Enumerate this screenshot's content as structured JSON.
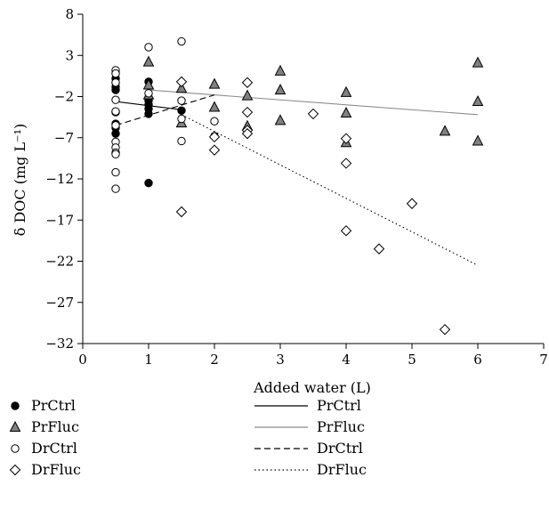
{
  "chart_data": {
    "type": "scatter",
    "xlabel": "Added water (L)",
    "ylabel": "δ DOC (mg L⁻¹)",
    "xlim": [
      0,
      7
    ],
    "ylim": [
      -32,
      8
    ],
    "xticks": [
      0,
      1,
      2,
      3,
      4,
      5,
      6,
      7
    ],
    "yticks": [
      8,
      3,
      -2,
      -7,
      -12,
      -17,
      -22,
      -27,
      -32
    ],
    "grid": false,
    "legend_position": "bottom",
    "series": [
      {
        "name": "PrCtrl",
        "marker": "filled-circle",
        "fill": "#000000",
        "points": [
          [
            0.5,
            0.2
          ],
          [
            0.5,
            -0.3
          ],
          [
            0.5,
            -0.8
          ],
          [
            0.5,
            -1.2
          ],
          [
            0.5,
            -3.9
          ],
          [
            0.5,
            -5.3
          ],
          [
            0.5,
            -5.8
          ],
          [
            0.5,
            -6.5
          ],
          [
            1.0,
            -0.2
          ],
          [
            1.0,
            -2.5
          ],
          [
            1.0,
            -3.0
          ],
          [
            1.0,
            -3.5
          ],
          [
            1.0,
            -4.1
          ],
          [
            1.0,
            -12.5
          ],
          [
            1.5,
            -3.7
          ]
        ]
      },
      {
        "name": "PrFluc",
        "marker": "filled-triangle",
        "fill": "#808080",
        "points": [
          [
            1.0,
            2.2
          ],
          [
            1.0,
            -0.6
          ],
          [
            1.0,
            -1.8
          ],
          [
            1.5,
            -1.0
          ],
          [
            1.5,
            -5.2
          ],
          [
            2.0,
            -0.5
          ],
          [
            2.0,
            -3.3
          ],
          [
            2.5,
            -1.9
          ],
          [
            2.5,
            -5.6
          ],
          [
            3.0,
            1.1
          ],
          [
            3.0,
            -1.2
          ],
          [
            3.0,
            -4.9
          ],
          [
            4.0,
            -1.5
          ],
          [
            4.0,
            -4.0
          ],
          [
            4.0,
            -7.6
          ],
          [
            5.5,
            -6.2
          ],
          [
            6.0,
            2.1
          ],
          [
            6.0,
            -2.6
          ],
          [
            6.0,
            -7.4
          ]
        ]
      },
      {
        "name": "DrCtrl",
        "marker": "open-circle",
        "fill": "#ffffff",
        "points": [
          [
            0.5,
            1.2
          ],
          [
            0.5,
            0.8
          ],
          [
            0.5,
            -0.3
          ],
          [
            0.5,
            -2.4
          ],
          [
            0.5,
            -3.8
          ],
          [
            0.5,
            -5.5
          ],
          [
            0.5,
            -7.5
          ],
          [
            0.5,
            -8.2
          ],
          [
            0.5,
            -8.8
          ],
          [
            0.5,
            -9.0
          ],
          [
            0.5,
            -11.2
          ],
          [
            0.5,
            -13.2
          ],
          [
            1.0,
            4.0
          ],
          [
            1.0,
            -1.6
          ],
          [
            1.5,
            4.7
          ],
          [
            1.5,
            -2.5
          ],
          [
            1.5,
            -4.7
          ],
          [
            1.5,
            -7.4
          ],
          [
            2.0,
            -5.0
          ],
          [
            2.0,
            -6.8
          ]
        ]
      },
      {
        "name": "DrFluc",
        "marker": "open-diamond",
        "fill": "#ffffff",
        "points": [
          [
            1.5,
            -0.2
          ],
          [
            1.5,
            -16.0
          ],
          [
            2.0,
            -6.9
          ],
          [
            2.0,
            -8.5
          ],
          [
            2.5,
            -0.3
          ],
          [
            2.5,
            -3.9
          ],
          [
            2.5,
            -6.1
          ],
          [
            2.5,
            -6.5
          ],
          [
            3.5,
            -4.1
          ],
          [
            4.0,
            -7.1
          ],
          [
            4.0,
            -10.1
          ],
          [
            4.0,
            -18.3
          ],
          [
            4.5,
            -20.5
          ],
          [
            5.0,
            -15.0
          ],
          [
            5.5,
            -30.3
          ]
        ]
      }
    ],
    "trendlines": [
      {
        "name": "PrCtrl",
        "style": "solid",
        "color": "#000000",
        "x": [
          0.5,
          1.5
        ],
        "y": [
          -2.6,
          -3.6
        ]
      },
      {
        "name": "PrFluc",
        "style": "solid",
        "color": "#8c8c8c",
        "x": [
          1.0,
          6.0
        ],
        "y": [
          -1.2,
          -4.2
        ]
      },
      {
        "name": "DrCtrl",
        "style": "dashed",
        "color": "#000000",
        "x": [
          0.5,
          2.0
        ],
        "y": [
          -5.5,
          -1.8
        ]
      },
      {
        "name": "DrFluc",
        "style": "dotted",
        "color": "#000000",
        "x": [
          1.5,
          6.0
        ],
        "y": [
          -4.2,
          -22.5
        ]
      }
    ],
    "legend": {
      "markers": [
        "PrCtrl",
        "PrFluc",
        "DrCtrl",
        "DrFluc"
      ],
      "lines": [
        "PrCtrl",
        "PrFluc",
        "DrCtrl",
        "DrFluc"
      ]
    }
  }
}
